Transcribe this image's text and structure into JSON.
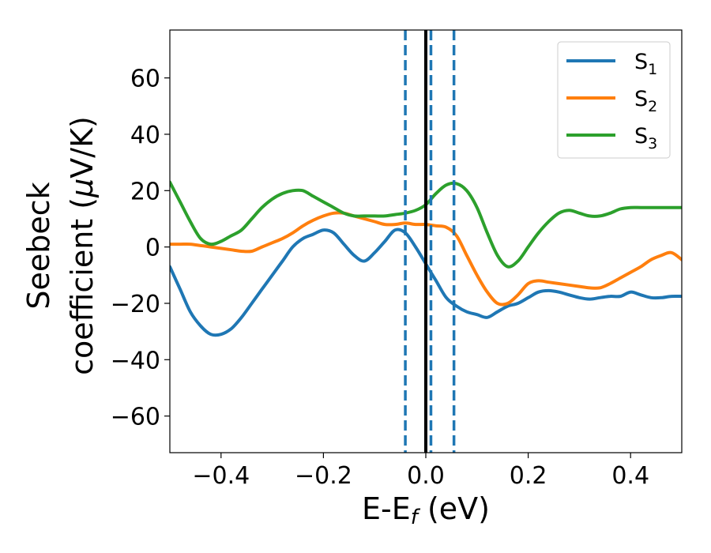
{
  "chart_data": {
    "type": "line",
    "title": "",
    "xlabel": "E-E",
    "xlabel_sub": "f",
    "xlabel_unit": " (eV)",
    "ylabel_line1": "Seebeck",
    "ylabel_line2_a": "coefficient  (",
    "ylabel_line2_mu": "μ",
    "ylabel_line2_b": "V/K)",
    "xlim": [
      -0.5,
      0.5
    ],
    "ylim": [
      -73,
      77
    ],
    "xticks": [
      -0.4,
      -0.2,
      0.0,
      0.2,
      0.4
    ],
    "xtick_labels": [
      "−0.4",
      "−0.2",
      "0.0",
      "0.2",
      "0.4"
    ],
    "yticks": [
      60,
      40,
      20,
      0,
      -20,
      -40,
      -60
    ],
    "ytick_labels": [
      "60",
      "40",
      "20",
      "0",
      "−20",
      "−40",
      "−60"
    ],
    "grid": false,
    "legend_position": "top-right",
    "vlines": [
      {
        "name": "fermi-level-line",
        "x": 0.0,
        "color": "#000000",
        "style": "solid"
      },
      {
        "name": "dashed-line-1",
        "x": -0.04,
        "color": "#1f77b4",
        "style": "dashed"
      },
      {
        "name": "dashed-line-2",
        "x": 0.01,
        "color": "#1f77b4",
        "style": "dashed"
      },
      {
        "name": "dashed-line-3",
        "x": 0.055,
        "color": "#1f77b4",
        "style": "dashed"
      }
    ],
    "series": [
      {
        "name": "S",
        "sub": "1",
        "color": "#1f77b4",
        "x": [
          -0.5,
          -0.48,
          -0.46,
          -0.44,
          -0.42,
          -0.4,
          -0.38,
          -0.36,
          -0.34,
          -0.32,
          -0.3,
          -0.28,
          -0.26,
          -0.24,
          -0.22,
          -0.2,
          -0.18,
          -0.16,
          -0.14,
          -0.12,
          -0.1,
          -0.08,
          -0.06,
          -0.04,
          -0.02,
          0.0,
          0.02,
          0.04,
          0.06,
          0.08,
          0.1,
          0.12,
          0.14,
          0.16,
          0.18,
          0.2,
          0.22,
          0.24,
          0.26,
          0.28,
          0.3,
          0.32,
          0.34,
          0.36,
          0.38,
          0.4,
          0.42,
          0.44,
          0.46,
          0.48,
          0.5
        ],
        "y": [
          -7,
          -15,
          -23,
          -28,
          -31,
          -31,
          -29,
          -25,
          -20,
          -15,
          -10,
          -5,
          0,
          3,
          4.5,
          6,
          5,
          1,
          -3,
          -5,
          -2,
          2,
          6,
          5,
          0,
          -6,
          -12,
          -18,
          -21,
          -23,
          -24,
          -25,
          -23,
          -21,
          -20,
          -18,
          -16,
          -15.5,
          -16,
          -17,
          -18,
          -18.5,
          -18,
          -17.5,
          -17.5,
          -16,
          -17,
          -18,
          -18,
          -17.5,
          -17.5
        ]
      },
      {
        "name": "S",
        "sub": "2",
        "color": "#ff7f0e",
        "x": [
          -0.5,
          -0.48,
          -0.46,
          -0.44,
          -0.42,
          -0.4,
          -0.38,
          -0.36,
          -0.34,
          -0.32,
          -0.3,
          -0.28,
          -0.26,
          -0.24,
          -0.22,
          -0.2,
          -0.18,
          -0.16,
          -0.14,
          -0.12,
          -0.1,
          -0.08,
          -0.06,
          -0.04,
          -0.02,
          0.0,
          0.02,
          0.04,
          0.06,
          0.08,
          0.1,
          0.12,
          0.14,
          0.16,
          0.18,
          0.2,
          0.22,
          0.24,
          0.26,
          0.28,
          0.3,
          0.32,
          0.34,
          0.36,
          0.38,
          0.4,
          0.42,
          0.44,
          0.46,
          0.48,
          0.5
        ],
        "y": [
          1,
          1,
          1,
          0.5,
          0,
          -0.5,
          -1,
          -1.5,
          -1.5,
          0,
          1.5,
          3,
          5,
          7.5,
          9.5,
          11,
          12,
          12,
          11,
          10,
          9,
          8,
          8,
          8.5,
          8,
          8,
          7.5,
          7,
          4,
          -3,
          -10,
          -16,
          -20,
          -20,
          -17,
          -13,
          -12,
          -12.5,
          -13,
          -13.5,
          -14,
          -14.5,
          -14.5,
          -13,
          -11,
          -9,
          -7,
          -4.5,
          -3,
          -2,
          -4.5
        ]
      },
      {
        "name": "S",
        "sub": "3",
        "color": "#2ca02c",
        "x": [
          -0.5,
          -0.48,
          -0.46,
          -0.44,
          -0.42,
          -0.4,
          -0.38,
          -0.36,
          -0.34,
          -0.32,
          -0.3,
          -0.28,
          -0.26,
          -0.24,
          -0.22,
          -0.2,
          -0.18,
          -0.16,
          -0.14,
          -0.12,
          -0.1,
          -0.08,
          -0.06,
          -0.04,
          -0.02,
          0.0,
          0.02,
          0.04,
          0.06,
          0.08,
          0.1,
          0.12,
          0.14,
          0.16,
          0.18,
          0.2,
          0.22,
          0.24,
          0.26,
          0.28,
          0.3,
          0.32,
          0.34,
          0.36,
          0.38,
          0.4,
          0.42,
          0.44,
          0.46,
          0.48,
          0.5
        ],
        "y": [
          23,
          16,
          9,
          3,
          1,
          2,
          4,
          6,
          10,
          14,
          17,
          19,
          20,
          20,
          18,
          16,
          14,
          12,
          11,
          11,
          11,
          11,
          11.5,
          12,
          13,
          15,
          19,
          22,
          22.5,
          20,
          14,
          5,
          -3,
          -7,
          -5,
          0,
          5,
          9,
          12,
          13,
          12,
          11,
          11,
          12,
          13.5,
          14,
          14,
          14,
          14,
          14,
          14
        ]
      }
    ]
  }
}
